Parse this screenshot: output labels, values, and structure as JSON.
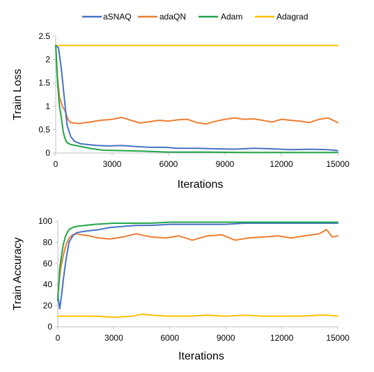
{
  "legend": {
    "placement": "top-center",
    "entries": [
      {
        "name": "aSNAQ",
        "color": "#4472C4"
      },
      {
        "name": "adaQN",
        "color": "#ED7D31"
      },
      {
        "name": "Adam",
        "color": "#21A548"
      },
      {
        "name": "Adagrad",
        "color": "#FFC000"
      }
    ]
  },
  "chart_data": [
    {
      "type": "line",
      "title": "",
      "xlabel": "Iterations",
      "ylabel": "Train Loss",
      "xlim": [
        0,
        15000
      ],
      "ylim": [
        0,
        2.5
      ],
      "xticks": [
        0,
        3000,
        6000,
        9000,
        12000,
        15000
      ],
      "yticks": [
        0,
        0.5,
        1,
        1.5,
        2,
        2.5
      ],
      "ytick_labels": [
        "0",
        "0.5",
        "1",
        "1.5",
        "2",
        "2.5"
      ],
      "grid": false,
      "series": [
        {
          "name": "aSNAQ",
          "color": "#4472C4",
          "x": [
            0,
            150,
            300,
            450,
            600,
            800,
            1000,
            1300,
            1700,
            2200,
            2800,
            3500,
            4200,
            5000,
            5800,
            6500,
            7500,
            8500,
            9500,
            10500,
            11500,
            12500,
            13500,
            14500,
            15000
          ],
          "y": [
            2.3,
            2.25,
            1.8,
            1.2,
            0.6,
            0.35,
            0.25,
            0.2,
            0.18,
            0.16,
            0.15,
            0.16,
            0.14,
            0.12,
            0.12,
            0.1,
            0.1,
            0.09,
            0.08,
            0.1,
            0.09,
            0.07,
            0.08,
            0.07,
            0.05
          ]
        },
        {
          "name": "adaQN",
          "color": "#ED7D31",
          "x": [
            0,
            100,
            200,
            350,
            500,
            650,
            800,
            1200,
            1800,
            2400,
            3000,
            3500,
            4000,
            4500,
            5000,
            5500,
            6000,
            6500,
            7000,
            7500,
            8000,
            8500,
            9000,
            9500,
            10000,
            10500,
            11000,
            11500,
            12000,
            12500,
            13000,
            13500,
            14000,
            14500,
            15000
          ],
          "y": [
            2.3,
            1.6,
            1.2,
            1.0,
            0.9,
            0.72,
            0.65,
            0.63,
            0.66,
            0.7,
            0.72,
            0.76,
            0.7,
            0.64,
            0.67,
            0.7,
            0.68,
            0.71,
            0.72,
            0.65,
            0.62,
            0.68,
            0.72,
            0.75,
            0.72,
            0.73,
            0.7,
            0.66,
            0.72,
            0.7,
            0.68,
            0.65,
            0.72,
            0.75,
            0.65
          ]
        },
        {
          "name": "Adam",
          "color": "#21A548",
          "x": [
            0,
            100,
            200,
            300,
            400,
            500,
            600,
            800,
            1200,
            1800,
            2500,
            3500,
            4500,
            6000,
            8000,
            10000,
            12000,
            14000,
            15000
          ],
          "y": [
            2.3,
            1.5,
            1.0,
            0.75,
            0.45,
            0.3,
            0.22,
            0.18,
            0.15,
            0.1,
            0.06,
            0.05,
            0.04,
            0.02,
            0.02,
            0.01,
            0.01,
            0.01,
            0.01
          ]
        },
        {
          "name": "Adagrad",
          "color": "#FFC000",
          "x": [
            0,
            3000,
            6000,
            9000,
            12000,
            15000
          ],
          "y": [
            2.3,
            2.3,
            2.3,
            2.3,
            2.3,
            2.3
          ]
        }
      ]
    },
    {
      "type": "line",
      "title": "",
      "xlabel": "Iterations",
      "ylabel": "Train Accuracy",
      "xlim": [
        0,
        15000
      ],
      "ylim": [
        0,
        100
      ],
      "xticks": [
        0,
        3000,
        6000,
        9000,
        12000,
        15000
      ],
      "yticks": [
        0,
        20,
        40,
        60,
        80,
        100
      ],
      "ytick_labels": [
        "0",
        "20",
        "40",
        "60",
        "80",
        "100"
      ],
      "grid": false,
      "series": [
        {
          "name": "aSNAQ",
          "color": "#4472C4",
          "x": [
            0,
            100,
            200,
            300,
            450,
            600,
            800,
            1000,
            1300,
            1700,
            2200,
            2800,
            3500,
            4200,
            5000,
            6000,
            7000,
            8000,
            9000,
            10000,
            11000,
            12000,
            13000,
            14000,
            15000
          ],
          "y": [
            30,
            17,
            30,
            45,
            65,
            80,
            86,
            89,
            90,
            91,
            92,
            94,
            95,
            96,
            96,
            97,
            97,
            97,
            97,
            98,
            98,
            98,
            98,
            98,
            98
          ]
        },
        {
          "name": "adaQN",
          "color": "#ED7D31",
          "x": [
            0,
            150,
            300,
            450,
            600,
            800,
            1000,
            1300,
            1700,
            2200,
            2800,
            3500,
            4200,
            5000,
            5800,
            6500,
            7200,
            8000,
            8800,
            9500,
            10200,
            11000,
            11800,
            12500,
            13200,
            14000,
            14400,
            14700,
            15000
          ],
          "y": [
            30,
            55,
            68,
            78,
            84,
            87,
            88,
            87,
            86,
            84,
            83,
            85,
            88,
            85,
            84,
            86,
            82,
            86,
            87,
            82,
            84,
            85,
            86,
            84,
            86,
            88,
            92,
            85,
            86
          ]
        },
        {
          "name": "Adam",
          "color": "#21A548",
          "x": [
            0,
            100,
            200,
            300,
            400,
            500,
            600,
            800,
            1000,
            1500,
            2000,
            3000,
            4000,
            5000,
            6000,
            8000,
            10000,
            12000,
            14000,
            15000
          ],
          "y": [
            25,
            55,
            68,
            78,
            85,
            89,
            92,
            94,
            95,
            96,
            97,
            98,
            98,
            98,
            99,
            99,
            99,
            99,
            99,
            99
          ]
        },
        {
          "name": "Adagrad",
          "color": "#FFC000",
          "x": [
            0,
            1000,
            2000,
            3000,
            4000,
            4500,
            5000,
            6000,
            7000,
            8000,
            9000,
            10000,
            11000,
            12000,
            13000,
            14000,
            14500,
            15000
          ],
          "y": [
            10,
            10,
            10,
            9,
            10,
            12,
            11,
            10,
            10,
            11,
            10,
            11,
            10,
            10,
            10,
            11,
            11,
            10
          ]
        }
      ]
    }
  ]
}
